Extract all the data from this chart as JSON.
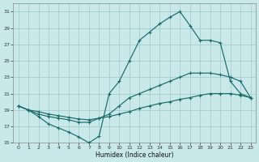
{
  "xlabel": "Humidex (Indice chaleur)",
  "xlim": [
    -0.5,
    23.5
  ],
  "ylim": [
    15,
    32
  ],
  "yticks": [
    15,
    17,
    19,
    21,
    23,
    25,
    27,
    29,
    31
  ],
  "xticks": [
    0,
    1,
    2,
    3,
    4,
    5,
    6,
    7,
    8,
    9,
    10,
    11,
    12,
    13,
    14,
    15,
    16,
    17,
    18,
    19,
    20,
    21,
    22,
    23
  ],
  "background_color": "#c8e8ea",
  "grid_color": "#a0c8c8",
  "line_color": "#1a6b6a",
  "line1_x": [
    0,
    1,
    2,
    3,
    4,
    5,
    6,
    7,
    8,
    9,
    10,
    11,
    12,
    13,
    14,
    15,
    16,
    17,
    18,
    19,
    20,
    21,
    22,
    23
  ],
  "line1_y": [
    19.5,
    19.0,
    18.2,
    17.3,
    16.8,
    16.3,
    15.7,
    15.0,
    15.8,
    21.0,
    22.5,
    25.0,
    27.5,
    28.5,
    29.5,
    30.3,
    31.0,
    29.3,
    27.5,
    27.5,
    27.2,
    22.5,
    21.0,
    20.5
  ],
  "line2_x": [
    0,
    1,
    2,
    3,
    4,
    5,
    6,
    7,
    8,
    9,
    10,
    11,
    12,
    13,
    14,
    15,
    16,
    17,
    18,
    19,
    20,
    21,
    22,
    23
  ],
  "line2_y": [
    19.5,
    19.0,
    18.5,
    18.2,
    18.0,
    17.8,
    17.5,
    17.5,
    18.0,
    18.5,
    19.5,
    20.5,
    21.0,
    21.5,
    22.0,
    22.5,
    23.0,
    23.5,
    23.5,
    23.5,
    23.3,
    23.0,
    22.5,
    20.5
  ],
  "line3_x": [
    0,
    1,
    2,
    3,
    4,
    5,
    6,
    7,
    8,
    9,
    10,
    11,
    12,
    13,
    14,
    15,
    16,
    17,
    18,
    19,
    20,
    21,
    22,
    23
  ],
  "line3_y": [
    19.5,
    19.0,
    18.8,
    18.5,
    18.3,
    18.1,
    17.9,
    17.8,
    18.0,
    18.2,
    18.5,
    18.8,
    19.2,
    19.5,
    19.8,
    20.0,
    20.3,
    20.5,
    20.8,
    21.0,
    21.0,
    21.0,
    20.8,
    20.5
  ]
}
